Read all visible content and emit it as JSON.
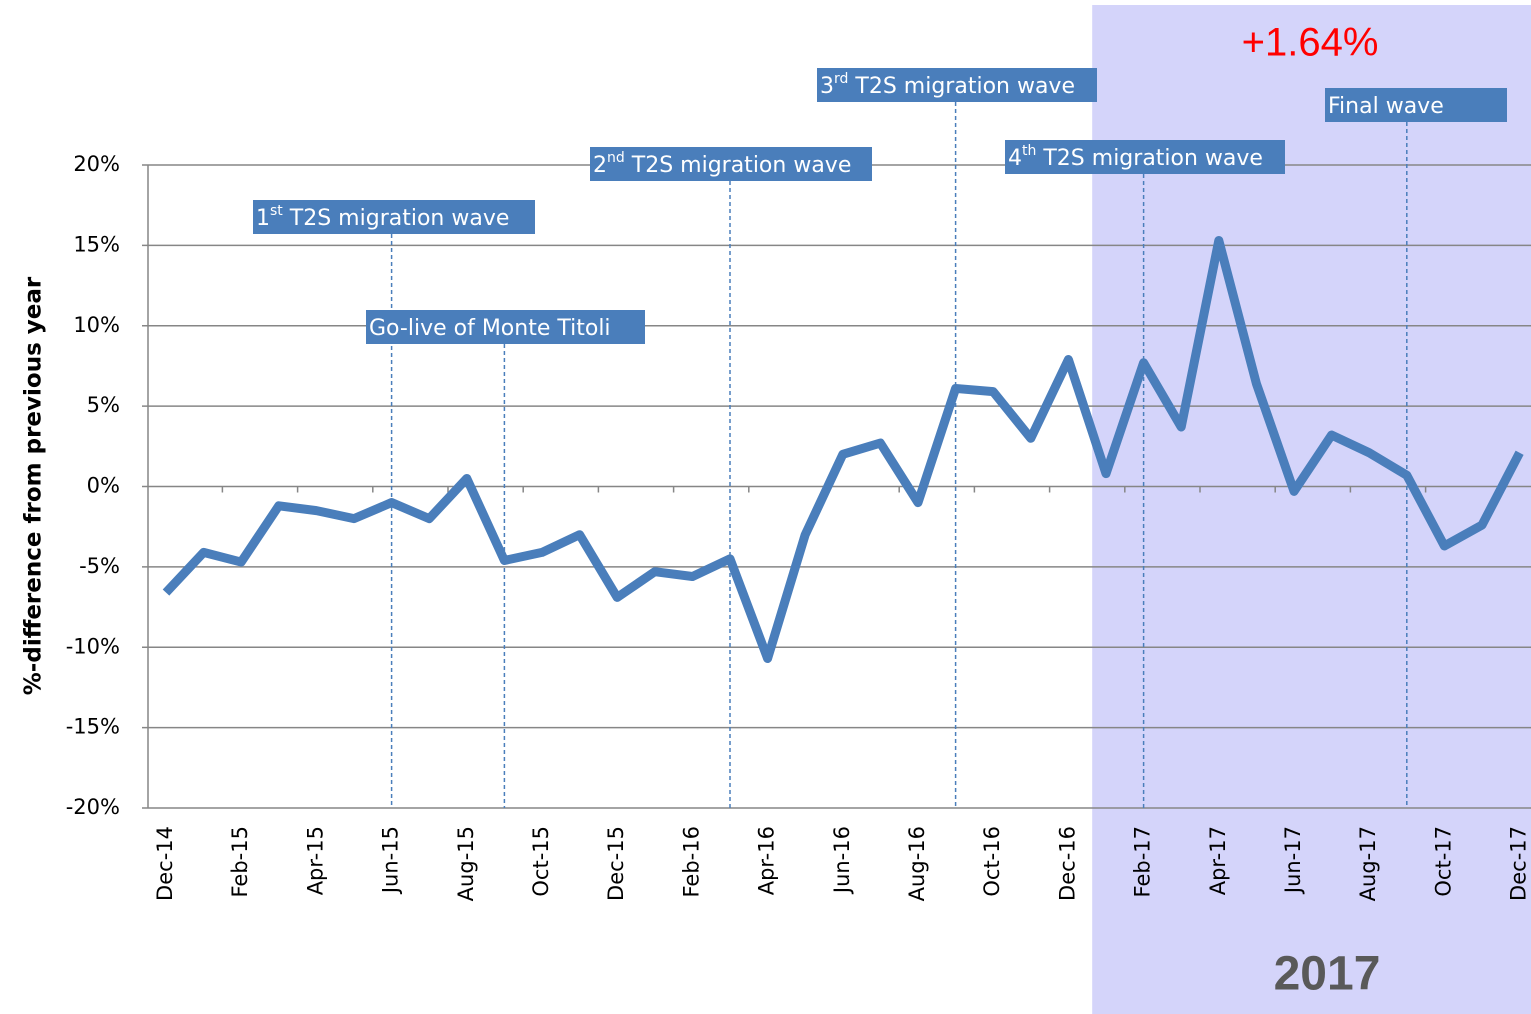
{
  "chart_data": {
    "type": "line",
    "y_label": "%-difference from previous year",
    "categories": [
      "Dec-14",
      null,
      "Feb-15",
      null,
      "Apr-15",
      null,
      "Jun-15",
      null,
      "Aug-15",
      null,
      "Oct-15",
      null,
      "Dec-15",
      null,
      "Feb-16",
      null,
      "Apr-16",
      null,
      "Jun-16",
      null,
      "Aug-16",
      null,
      "Oct-16",
      null,
      "Dec-16",
      null,
      "Feb-17",
      null,
      "Apr-17",
      null,
      "Jun-17",
      null,
      "Aug-17",
      null,
      "Oct-17",
      null,
      "Dec-17"
    ],
    "series": [
      {
        "color": "#4a7ebb",
        "values": [
          -6.6,
          -4.1,
          -4.7,
          -1.2,
          -1.5,
          -2.0,
          -1.0,
          -2.0,
          0.5,
          -4.6,
          -4.1,
          -3.0,
          -6.9,
          -5.3,
          -5.6,
          -4.5,
          -10.7,
          -3.0,
          2.0,
          2.7,
          -1.0,
          6.1,
          5.9,
          3.0,
          7.9,
          0.8,
          7.7,
          3.7,
          15.3,
          6.4,
          -0.3,
          3.2,
          2.1,
          0.7,
          -3.7,
          -2.4,
          2.1
        ]
      }
    ],
    "ylim": [
      -20,
      20
    ],
    "yticks": [
      {
        "value": -20,
        "label": "-20%"
      },
      {
        "value": -15,
        "label": "-15%"
      },
      {
        "value": -10,
        "label": "-10%"
      },
      {
        "value": -5,
        "label": "-5%"
      },
      {
        "value": 0,
        "label": "0%"
      },
      {
        "value": 5,
        "label": "5%"
      },
      {
        "value": 10,
        "label": "10%"
      },
      {
        "value": 15,
        "label": "15%"
      },
      {
        "value": 20,
        "label": "20%"
      }
    ],
    "grid": true,
    "highlight": {
      "from_index": 25,
      "label": "2017",
      "change": "+1.64%",
      "color": "#d4d4fa"
    },
    "events": [
      {
        "index": 6,
        "ordinal": "1",
        "suffix": "st",
        "text": " T2S migration wave"
      },
      {
        "index": 9,
        "text": "Go-live of Monte Titoli"
      },
      {
        "index": 15,
        "ordinal": "2",
        "suffix": "nd",
        "text": " T2S migration wave"
      },
      {
        "index": 21,
        "ordinal": "3",
        "suffix": "rd",
        "text": " T2S migration wave"
      },
      {
        "index": 26,
        "ordinal": "4",
        "suffix": "th",
        "text": " T2S migration wave"
      },
      {
        "index": 33,
        "text": "Final wave"
      }
    ]
  }
}
